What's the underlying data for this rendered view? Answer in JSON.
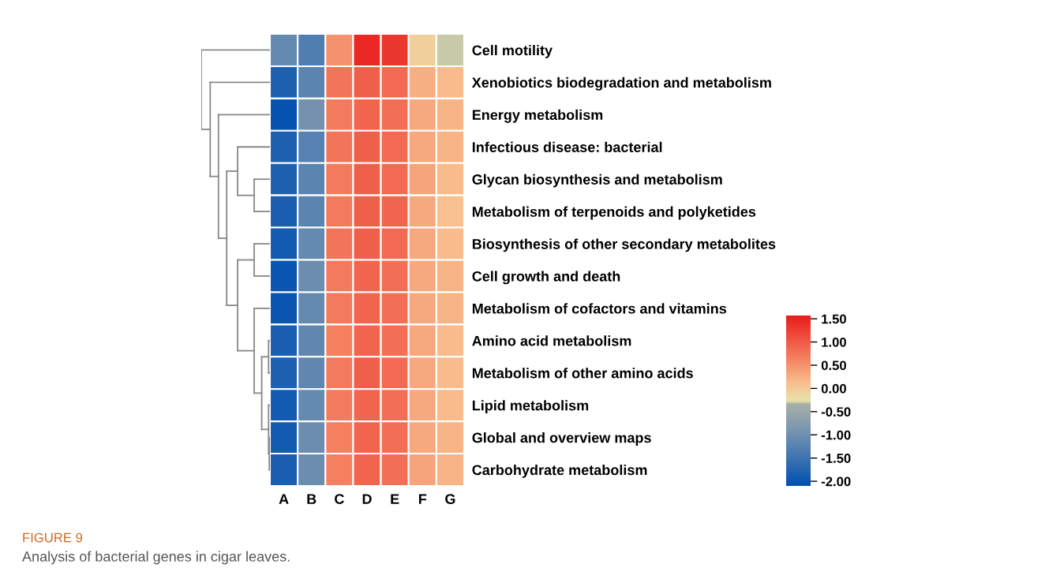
{
  "chart_data": {
    "type": "heatmap",
    "categories": [
      "A",
      "B",
      "C",
      "D",
      "E",
      "F",
      "G"
    ],
    "y_categories": [
      "Cell motility",
      "Xenobiotics biodegradation and metabolism",
      "Energy metabolism",
      "Infectious disease: bacterial",
      "Glycan biosynthesis and metabolism",
      "Metabolism of terpenoids and polyketides",
      "Biosynthesis of other secondary metabolites",
      "Cell growth and death",
      "Metabolism of cofactors and vitamins",
      "Amino acid metabolism",
      "Metabolism of other amino acids",
      "Lipid metabolism",
      "Global and overview maps",
      "Carbohydrate metabolism"
    ],
    "cells": [
      [
        -1.1,
        -1.3,
        0.5,
        1.45,
        1.3,
        -0.05,
        -0.3
      ],
      [
        -1.8,
        -1.2,
        0.75,
        0.95,
        0.85,
        0.25,
        0.15
      ],
      [
        -2.05,
        -0.95,
        0.7,
        0.9,
        0.8,
        0.3,
        0.2
      ],
      [
        -1.8,
        -1.25,
        0.75,
        0.95,
        0.85,
        0.3,
        0.2
      ],
      [
        -1.8,
        -1.2,
        0.7,
        0.95,
        0.85,
        0.35,
        0.15
      ],
      [
        -1.85,
        -1.2,
        0.7,
        0.95,
        0.9,
        0.3,
        0.1
      ],
      [
        -1.9,
        -1.1,
        0.75,
        0.95,
        0.85,
        0.3,
        0.15
      ],
      [
        -2.0,
        -1.05,
        0.7,
        0.9,
        0.8,
        0.3,
        0.2
      ],
      [
        -2.0,
        -1.1,
        0.7,
        0.9,
        0.8,
        0.3,
        0.2
      ],
      [
        -1.85,
        -1.15,
        0.65,
        0.9,
        0.8,
        0.3,
        0.15
      ],
      [
        -1.8,
        -1.15,
        0.7,
        0.95,
        0.85,
        0.3,
        0.15
      ],
      [
        -1.9,
        -1.1,
        0.7,
        0.9,
        0.8,
        0.3,
        0.15
      ],
      [
        -1.9,
        -1.05,
        0.65,
        0.9,
        0.8,
        0.3,
        0.2
      ],
      [
        -1.85,
        -1.05,
        0.65,
        0.9,
        0.8,
        0.35,
        0.2
      ]
    ],
    "clim": [
      -2.1,
      1.57
    ],
    "cticks": [
      {
        "value": 1.5,
        "label": "1.50"
      },
      {
        "value": 1.0,
        "label": "1.00"
      },
      {
        "value": 0.5,
        "label": "0.50"
      },
      {
        "value": 0.0,
        "label": "0.00"
      },
      {
        "value": -0.5,
        "label": "-0.50"
      },
      {
        "value": -1.0,
        "label": "-1.00"
      },
      {
        "value": -1.5,
        "label": "-1.50"
      },
      {
        "value": -2.0,
        "label": "-2.00"
      }
    ],
    "annotations": [
      "FIGURE 9",
      "Analysis of bacterial genes in cigar leaves."
    ]
  }
}
